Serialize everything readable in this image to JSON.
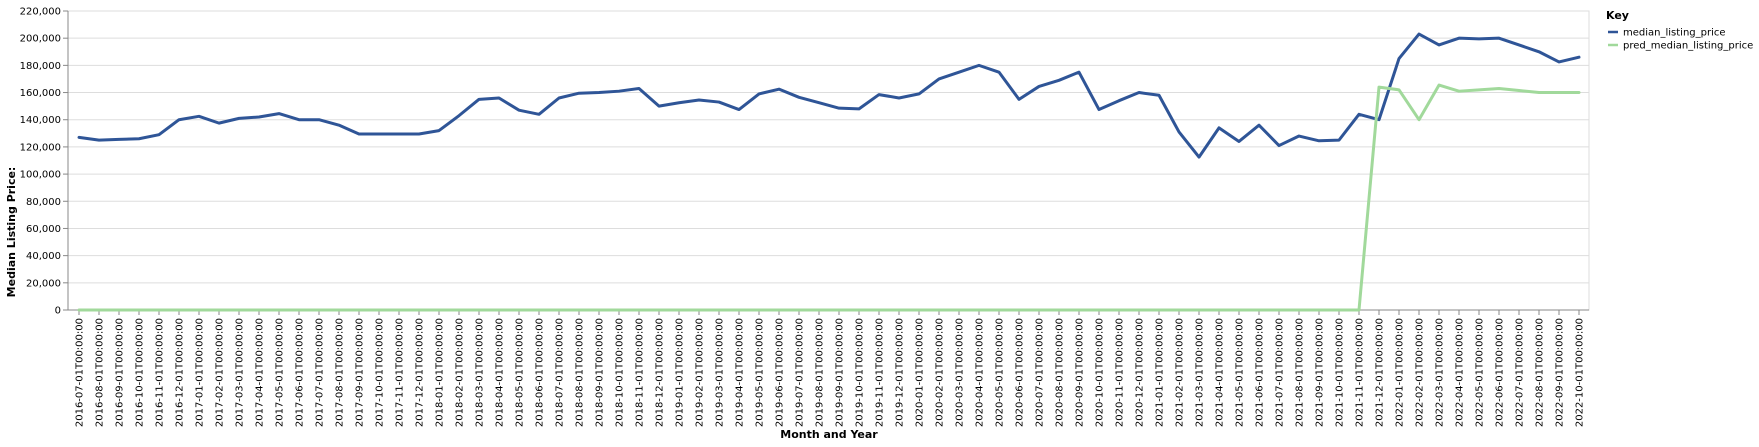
{
  "chart_data": {
    "type": "line",
    "xlabel": "Month and Year",
    "ylabel": "Median Listing Price:",
    "ylim": [
      0,
      220000
    ],
    "yticks": [
      "0",
      "20,000",
      "40,000",
      "60,000",
      "80,000",
      "100,000",
      "120,000",
      "140,000",
      "160,000",
      "180,000",
      "200,000",
      "220,000"
    ],
    "grid": true,
    "legend": {
      "title": "Key",
      "placement": "top-right"
    },
    "colors": {
      "median_listing_price": "#2f5597",
      "pred_median_listing_price": "#a1d99b"
    },
    "x": [
      "2016-07-01T00:00:00",
      "2016-08-01T00:00:00",
      "2016-09-01T00:00:00",
      "2016-10-01T00:00:00",
      "2016-11-01T00:00:00",
      "2016-12-01T00:00:00",
      "2017-01-01T00:00:00",
      "2017-02-01T00:00:00",
      "2017-03-01T00:00:00",
      "2017-04-01T00:00:00",
      "2017-05-01T00:00:00",
      "2017-06-01T00:00:00",
      "2017-07-01T00:00:00",
      "2017-08-01T00:00:00",
      "2017-09-01T00:00:00",
      "2017-10-01T00:00:00",
      "2017-11-01T00:00:00",
      "2017-12-01T00:00:00",
      "2018-01-01T00:00:00",
      "2018-02-01T00:00:00",
      "2018-03-01T00:00:00",
      "2018-04-01T00:00:00",
      "2018-05-01T00:00:00",
      "2018-06-01T00:00:00",
      "2018-07-01T00:00:00",
      "2018-08-01T00:00:00",
      "2018-09-01T00:00:00",
      "2018-10-01T00:00:00",
      "2018-11-01T00:00:00",
      "2018-12-01T00:00:00",
      "2019-01-01T00:00:00",
      "2019-02-01T00:00:00",
      "2019-03-01T00:00:00",
      "2019-04-01T00:00:00",
      "2019-05-01T00:00:00",
      "2019-06-01T00:00:00",
      "2019-07-01T00:00:00",
      "2019-08-01T00:00:00",
      "2019-09-01T00:00:00",
      "2019-10-01T00:00:00",
      "2019-11-01T00:00:00",
      "2019-12-01T00:00:00",
      "2020-01-01T00:00:00",
      "2020-02-01T00:00:00",
      "2020-03-01T00:00:00",
      "2020-04-01T00:00:00",
      "2020-05-01T00:00:00",
      "2020-06-01T00:00:00",
      "2020-07-01T00:00:00",
      "2020-08-01T00:00:00",
      "2020-09-01T00:00:00",
      "2020-10-01T00:00:00",
      "2020-11-01T00:00:00",
      "2020-12-01T00:00:00",
      "2021-01-01T00:00:00",
      "2021-02-01T00:00:00",
      "2021-03-01T00:00:00",
      "2021-04-01T00:00:00",
      "2021-05-01T00:00:00",
      "2021-06-01T00:00:00",
      "2021-07-01T00:00:00",
      "2021-08-01T00:00:00",
      "2021-09-01T00:00:00",
      "2021-10-01T00:00:00",
      "2021-11-01T00:00:00",
      "2021-12-01T00:00:00",
      "2022-01-01T00:00:00",
      "2022-02-01T00:00:00",
      "2022-03-01T00:00:00",
      "2022-04-01T00:00:00",
      "2022-05-01T00:00:00",
      "2022-06-01T00:00:00",
      "2022-07-01T00:00:00",
      "2022-08-01T00:00:00",
      "2022-09-01T00:00:00",
      "2022-10-01T00:00:00"
    ],
    "series": [
      {
        "name": "median_listing_price",
        "values": [
          127000,
          125000,
          125500,
          126000,
          129000,
          140000,
          142500,
          137500,
          141000,
          142000,
          144500,
          140000,
          140000,
          136000,
          129500,
          129500,
          129500,
          129500,
          132000,
          143000,
          155000,
          156000,
          147000,
          144000,
          156000,
          159500,
          160000,
          161000,
          163000,
          150000,
          152500,
          154500,
          153000,
          147500,
          159000,
          162500,
          156500,
          152500,
          148500,
          148000,
          158500,
          156000,
          159000,
          170000,
          175000,
          180000,
          175000,
          155000,
          164500,
          169000,
          175000,
          147500,
          154000,
          160000,
          158000,
          131000,
          112500,
          134000,
          124000,
          136000,
          121000,
          128000,
          124500,
          125000,
          144000,
          140000,
          185000,
          203000,
          195000,
          200000,
          199500,
          200000,
          195000,
          190000,
          182500,
          186000
        ]
      },
      {
        "name": "pred_median_listing_price",
        "values": [
          0,
          0,
          0,
          0,
          0,
          0,
          0,
          0,
          0,
          0,
          0,
          0,
          0,
          0,
          0,
          0,
          0,
          0,
          0,
          0,
          0,
          0,
          0,
          0,
          0,
          0,
          0,
          0,
          0,
          0,
          0,
          0,
          0,
          0,
          0,
          0,
          0,
          0,
          0,
          0,
          0,
          0,
          0,
          0,
          0,
          0,
          0,
          0,
          0,
          0,
          0,
          0,
          0,
          0,
          0,
          0,
          0,
          0,
          0,
          0,
          0,
          0,
          0,
          0,
          0,
          164000,
          162000,
          140000,
          165500,
          161000,
          162000,
          163000,
          161500,
          160000,
          160000,
          160000
        ]
      }
    ]
  }
}
